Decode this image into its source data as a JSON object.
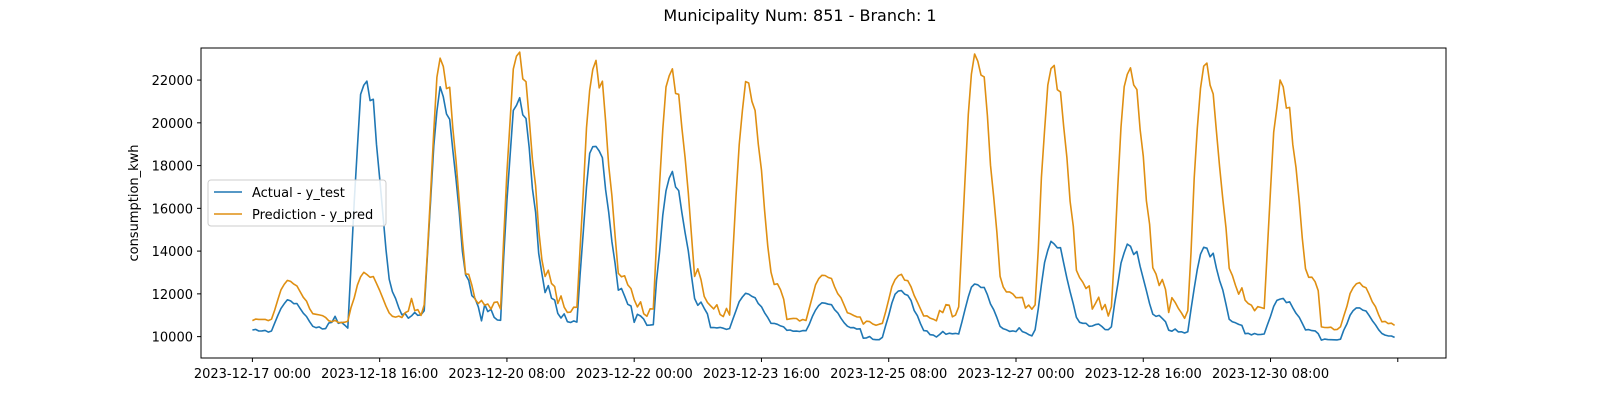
{
  "chart_data": {
    "type": "line",
    "title": "Municipality Num: 851 - Branch: 1",
    "xlabel": "",
    "ylabel": "consumption_kwh",
    "x_start": "2023-12-17 00:00",
    "x_end": "2023-12-31 23:00",
    "x_step": "hourly",
    "x_tick_labels": [
      "2023-12-17 00:00",
      "2023-12-18 16:00",
      "2023-12-20 08:00",
      "2023-12-22 00:00",
      "2023-12-23 16:00",
      "2023-12-25 08:00",
      "2023-12-27 00:00",
      "2023-12-28 16:00",
      "2023-12-30 08:00",
      ""
    ],
    "y_ticks": [
      10000,
      12000,
      14000,
      16000,
      18000,
      20000,
      22000
    ],
    "y_tick_labels": [
      "10000",
      "12000",
      "14000",
      "16000",
      "18000",
      "20000",
      "22000"
    ],
    "ylim": [
      9000,
      23500
    ],
    "grid": false,
    "legend_position": "center-left",
    "series": [
      {
        "name": "Actual - y_test",
        "color": "#1f77b4",
        "daily_profiles": [
          {
            "date": "2023-12-17",
            "base": 10200,
            "peak": 11700
          },
          {
            "date": "2023-12-18",
            "base": 10100,
            "peak": 22000
          },
          {
            "date": "2023-12-19",
            "base": 10400,
            "peak": 21500
          },
          {
            "date": "2023-12-20",
            "base": 10500,
            "peak": 21200
          },
          {
            "date": "2023-12-21",
            "base": 10500,
            "peak": 19200
          },
          {
            "date": "2023-12-22",
            "base": 10400,
            "peak": 17600
          },
          {
            "date": "2023-12-23",
            "base": 10300,
            "peak": 12000
          },
          {
            "date": "2023-12-24",
            "base": 10200,
            "peak": 11600
          },
          {
            "date": "2023-12-25",
            "base": 9800,
            "peak": 12200
          },
          {
            "date": "2023-12-26",
            "base": 10000,
            "peak": 12500
          },
          {
            "date": "2023-12-27",
            "base": 10000,
            "peak": 14500
          },
          {
            "date": "2023-12-28",
            "base": 10300,
            "peak": 14300
          },
          {
            "date": "2023-12-29",
            "base": 10100,
            "peak": 14200
          },
          {
            "date": "2023-12-30",
            "base": 10000,
            "peak": 11800
          },
          {
            "date": "2023-12-31",
            "base": 9800,
            "peak": 11400
          }
        ]
      },
      {
        "name": "Prediction - y_pred",
        "color": "#df8f12",
        "daily_profiles": [
          {
            "date": "2023-12-17",
            "base": 10700,
            "peak": 12600
          },
          {
            "date": "2023-12-18",
            "base": 10600,
            "peak": 13000
          },
          {
            "date": "2023-12-19",
            "base": 10600,
            "peak": 22900
          },
          {
            "date": "2023-12-20",
            "base": 11000,
            "peak": 23200
          },
          {
            "date": "2023-12-21",
            "base": 10800,
            "peak": 22800
          },
          {
            "date": "2023-12-22",
            "base": 10800,
            "peak": 22500
          },
          {
            "date": "2023-12-23",
            "base": 10700,
            "peak": 21800
          },
          {
            "date": "2023-12-24",
            "base": 10700,
            "peak": 12900
          },
          {
            "date": "2023-12-25",
            "base": 10500,
            "peak": 12900
          },
          {
            "date": "2023-12-26",
            "base": 10500,
            "peak": 23100
          },
          {
            "date": "2023-12-27",
            "base": 11000,
            "peak": 22800
          },
          {
            "date": "2023-12-28",
            "base": 10900,
            "peak": 22700
          },
          {
            "date": "2023-12-29",
            "base": 10800,
            "peak": 22800
          },
          {
            "date": "2023-12-30",
            "base": 10900,
            "peak": 21900
          },
          {
            "date": "2023-12-31",
            "base": 10300,
            "peak": 12500
          }
        ]
      }
    ]
  }
}
